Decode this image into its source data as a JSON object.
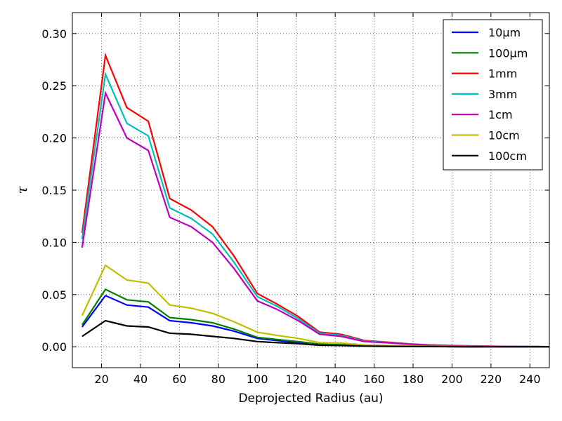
{
  "chart_data": {
    "type": "line",
    "title": "",
    "xlabel": "Deprojected Radius (au)",
    "ylabel": "τ",
    "xlim": [
      5,
      250
    ],
    "ylim": [
      -0.02,
      0.32
    ],
    "xticks": [
      20,
      40,
      60,
      80,
      100,
      120,
      140,
      160,
      180,
      200,
      220,
      240
    ],
    "yticks": [
      0.0,
      0.05,
      0.1,
      0.15,
      0.2,
      0.25,
      0.3
    ],
    "ytick_labels": [
      "0.00",
      "0.05",
      "0.10",
      "0.15",
      "0.20",
      "0.25",
      "0.30"
    ],
    "grid": true,
    "legend_position": "top-right",
    "x": [
      10,
      22,
      33,
      44,
      55,
      66,
      77,
      88,
      100,
      110,
      121,
      132,
      143,
      155,
      166,
      177,
      188,
      199,
      210,
      221,
      232,
      243,
      250
    ],
    "series": [
      {
        "name": "10μm",
        "color": "#0000ff",
        "values": [
          0.019,
          0.049,
          0.04,
          0.038,
          0.025,
          0.023,
          0.02,
          0.015,
          0.008,
          0.006,
          0.004,
          0.002,
          0.0018,
          0.0012,
          0.0008,
          0.0005,
          0.0003,
          0.0002,
          0.0001,
          0.0001,
          0.0,
          0.0,
          0.0
        ]
      },
      {
        "name": "100μm",
        "color": "#008000",
        "values": [
          0.021,
          0.055,
          0.045,
          0.043,
          0.028,
          0.026,
          0.023,
          0.017,
          0.009,
          0.007,
          0.005,
          0.0025,
          0.002,
          0.0013,
          0.0009,
          0.0006,
          0.0004,
          0.0002,
          0.0001,
          0.0001,
          0.0,
          0.0,
          0.0
        ]
      },
      {
        "name": "1mm",
        "color": "#ff0000",
        "values": [
          0.109,
          0.279,
          0.229,
          0.216,
          0.142,
          0.131,
          0.115,
          0.087,
          0.051,
          0.041,
          0.029,
          0.014,
          0.012,
          0.006,
          0.0045,
          0.003,
          0.0018,
          0.0012,
          0.0008,
          0.0005,
          0.0003,
          0.0002,
          0.0001
        ]
      },
      {
        "name": "3mm",
        "color": "#00bfbf",
        "values": [
          0.103,
          0.261,
          0.214,
          0.202,
          0.133,
          0.123,
          0.108,
          0.081,
          0.048,
          0.039,
          0.027,
          0.013,
          0.011,
          0.0055,
          0.0042,
          0.0028,
          0.0017,
          0.0011,
          0.0007,
          0.0004,
          0.0003,
          0.0002,
          0.0001
        ]
      },
      {
        "name": "1cm",
        "color": "#bf00bf",
        "values": [
          0.095,
          0.243,
          0.2,
          0.188,
          0.124,
          0.115,
          0.1,
          0.075,
          0.044,
          0.036,
          0.025,
          0.012,
          0.01,
          0.005,
          0.0039,
          0.0026,
          0.0016,
          0.001,
          0.0006,
          0.0004,
          0.0002,
          0.0001,
          0.0001
        ]
      },
      {
        "name": "10cm",
        "color": "#bfbf00",
        "values": [
          0.03,
          0.078,
          0.064,
          0.061,
          0.04,
          0.037,
          0.032,
          0.024,
          0.014,
          0.011,
          0.008,
          0.004,
          0.0035,
          0.0018,
          0.0013,
          0.0009,
          0.0005,
          0.0003,
          0.0002,
          0.0001,
          0.0001,
          0.0,
          0.0
        ]
      },
      {
        "name": "100cm",
        "color": "#000000",
        "values": [
          0.01,
          0.025,
          0.02,
          0.019,
          0.013,
          0.012,
          0.01,
          0.008,
          0.005,
          0.004,
          0.003,
          0.0015,
          0.0012,
          0.0006,
          0.0004,
          0.0003,
          0.0002,
          0.0001,
          0.0,
          0.0,
          0.0,
          0.0,
          0.0
        ]
      }
    ]
  }
}
